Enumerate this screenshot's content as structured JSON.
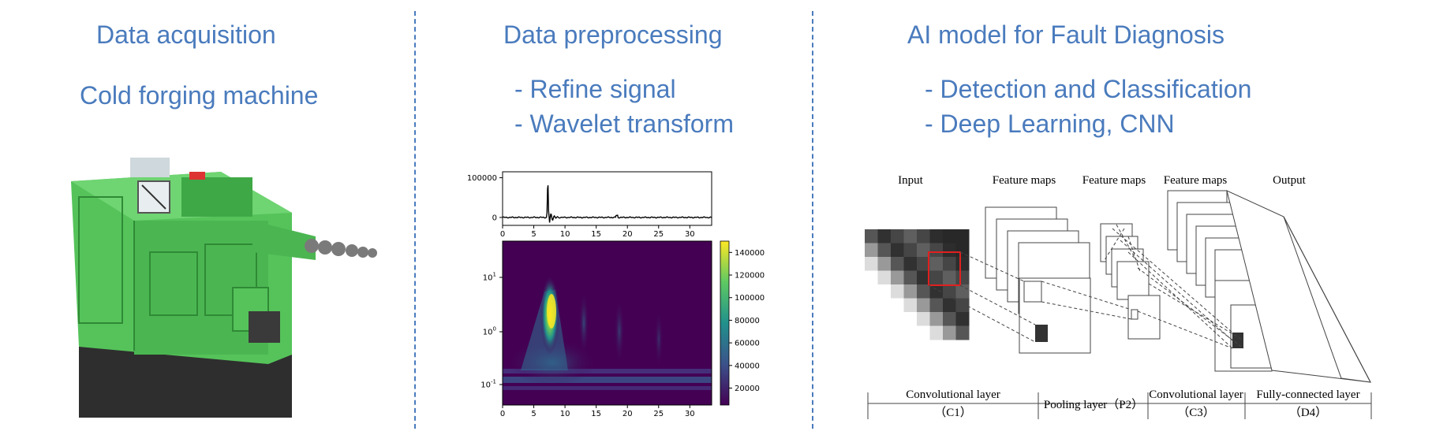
{
  "panels": {
    "acquisition": {
      "title": "Data acquisition",
      "subtitle": "Cold forging machine"
    },
    "preprocessing": {
      "title": "Data preprocessing",
      "bullets": [
        "- Refine signal",
        "- Wavelet transform"
      ]
    },
    "ai_model": {
      "title": "AI model for Fault Diagnosis",
      "bullets": [
        "- Detection and Classification",
        "- Deep Learning, CNN"
      ]
    }
  },
  "chart_data": [
    {
      "type": "line",
      "x_ticks": [
        "0",
        "5",
        "10",
        "15",
        "20",
        "25",
        "30"
      ],
      "y_ticks": [
        "0",
        "100000"
      ],
      "xlim": [
        0,
        33.5
      ],
      "ylim": [
        -20000,
        115000
      ]
    },
    {
      "type": "heatmap",
      "x_ticks": [
        "0",
        "5",
        "10",
        "15",
        "20",
        "25",
        "30"
      ],
      "y_scale": "log",
      "y_ticks": [
        "10^1",
        "10^0",
        "10^-1"
      ],
      "colorbar_ticks": [
        "140000",
        "120000",
        "100000",
        "80000",
        "60000",
        "40000",
        "20000"
      ],
      "colormap": "viridis"
    }
  ],
  "cnn_diagram": {
    "top_labels": [
      "Input",
      "Feature maps",
      "Feature maps",
      "Feature maps",
      "Output"
    ],
    "layers": [
      {
        "name": "Convolutional layer",
        "code": "（C1）"
      },
      {
        "name": "Pooling layer（P2）",
        "code": ""
      },
      {
        "name": "Convolutional layer",
        "code": "（C3）"
      },
      {
        "name": "Fully-connected layer",
        "code": "（D4）"
      }
    ],
    "colors": {
      "kernel_highlight": "#e02020",
      "accent": "#4a7bbd"
    }
  },
  "machine_image": {
    "colors": {
      "body": "#55c35a",
      "base": "#2e2e2e"
    }
  }
}
